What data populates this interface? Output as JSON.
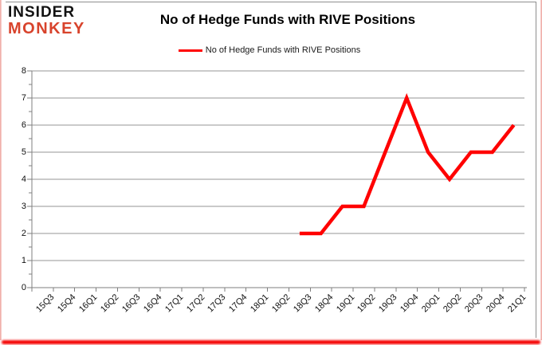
{
  "logo": {
    "line1": "INSIDER",
    "line2": "MONKEY"
  },
  "header": {
    "title": "No of Hedge Funds with RIVE Positions"
  },
  "legend": {
    "label": "No of Hedge Funds with RIVE Positions",
    "line_color": "#ff0000"
  },
  "colors": {
    "series_red": "#ff0000",
    "logo_red": "#d8432c",
    "grid": "#969696",
    "axis": "#7f7f7f",
    "frame_pink": "#eda49e",
    "bottom_glow": "#f40000",
    "text": "#111111"
  },
  "chart_data": {
    "type": "line",
    "title": "No of Hedge Funds with RIVE Positions",
    "categories": [
      "15Q3",
      "15Q4",
      "16Q1",
      "16Q2",
      "16Q3",
      "16Q4",
      "17Q1",
      "17Q2",
      "17Q3",
      "17Q4",
      "18Q1",
      "18Q2",
      "18Q3",
      "18Q4",
      "19Q1",
      "19Q2",
      "19Q3",
      "19Q4",
      "20Q1",
      "20Q2",
      "20Q3",
      "20Q4",
      "21Q1"
    ],
    "series": [
      {
        "name": "No of Hedge Funds with RIVE Positions",
        "color": "#ff0000",
        "values": [
          null,
          null,
          null,
          null,
          null,
          null,
          null,
          null,
          null,
          null,
          null,
          null,
          2,
          2,
          3,
          3,
          5,
          7,
          5,
          4,
          5,
          5,
          6
        ]
      }
    ],
    "ylim": [
      0,
      8
    ],
    "y_ticks": [
      "0",
      "1",
      "2",
      "3",
      "4",
      "5",
      "6",
      "7",
      "8"
    ],
    "y_minor_tick_interval": 0.5,
    "grid": "horizontal",
    "legend_position": "top-center"
  }
}
